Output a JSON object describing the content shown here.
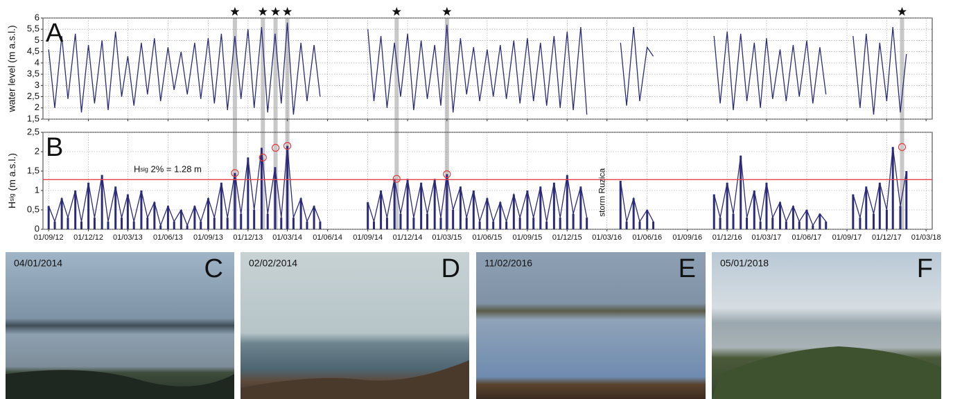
{
  "chart_data": {
    "type": "line",
    "x": [
      "2012-09-01",
      "2012-09-15",
      "2012-10-01",
      "2012-10-15",
      "2012-11-01",
      "2012-11-15",
      "2012-12-01",
      "2012-12-15",
      "2013-01-01",
      "2013-01-15",
      "2013-02-01",
      "2013-02-15",
      "2013-03-01",
      "2013-03-15",
      "2013-04-01",
      "2013-04-15",
      "2013-05-01",
      "2013-05-15",
      "2013-06-01",
      "2013-06-15",
      "2013-07-01",
      "2013-07-15",
      "2013-08-01",
      "2013-08-15",
      "2013-09-01",
      "2013-09-15",
      "2013-10-01",
      "2013-10-15",
      "2013-11-01",
      "2013-11-15",
      "2013-12-01",
      "2013-12-15",
      "2014-01-01",
      "2014-01-15",
      "2014-02-01",
      "2014-02-15",
      "2014-03-01",
      "2014-03-15",
      "2014-04-01",
      "2014-04-15",
      "2014-05-01",
      "2014-05-15",
      "2014-06-01",
      "2014-06-15",
      "2014-07-01",
      "2014-07-15",
      "2014-08-01",
      "2014-08-15",
      "2014-09-01",
      "2014-09-15",
      "2014-10-01",
      "2014-10-15",
      "2014-11-01",
      "2014-11-15",
      "2014-12-01",
      "2014-12-15",
      "2015-01-01",
      "2015-01-15",
      "2015-02-01",
      "2015-02-15",
      "2015-03-01",
      "2015-03-15",
      "2015-04-01",
      "2015-04-15",
      "2015-05-01",
      "2015-05-15",
      "2015-06-01",
      "2015-06-15",
      "2015-07-01",
      "2015-07-15",
      "2015-08-01",
      "2015-08-15",
      "2015-09-01",
      "2015-09-15",
      "2015-10-01",
      "2015-10-15",
      "2015-11-01",
      "2015-11-15",
      "2015-12-01",
      "2015-12-15",
      "2016-01-01",
      "2016-01-15",
      "2016-02-01",
      "2016-02-15",
      "2016-03-01",
      "2016-03-15",
      "2016-04-01",
      "2016-04-15",
      "2016-05-01",
      "2016-05-15",
      "2016-06-01",
      "2016-06-15",
      "2016-07-01",
      "2016-07-15",
      "2016-08-01",
      "2016-08-15",
      "2016-09-01",
      "2016-09-15",
      "2016-10-01",
      "2016-10-15",
      "2016-11-01",
      "2016-11-15",
      "2016-12-01",
      "2016-12-15",
      "2017-01-01",
      "2017-01-15",
      "2017-02-01",
      "2017-02-15",
      "2017-03-01",
      "2017-03-15",
      "2017-04-01",
      "2017-04-15",
      "2017-05-01",
      "2017-05-15",
      "2017-06-01",
      "2017-06-15",
      "2017-07-01",
      "2017-07-15",
      "2017-08-01",
      "2017-08-15",
      "2017-09-01",
      "2017-09-15",
      "2017-10-01",
      "2017-10-15",
      "2017-11-01",
      "2017-11-15",
      "2017-12-01",
      "2017-12-15",
      "2018-01-01",
      "2018-01-15"
    ],
    "xlim": [
      "2012-08-19",
      "2018-03-15"
    ],
    "xticks": [
      {
        "value": "2012-09-01",
        "label": "01/09/12"
      },
      {
        "value": "2012-12-01",
        "label": "01/12/12"
      },
      {
        "value": "2013-03-01",
        "label": "01/03/13"
      },
      {
        "value": "2013-06-01",
        "label": "01/06/13"
      },
      {
        "value": "2013-09-01",
        "label": "01/09/13"
      },
      {
        "value": "2013-12-01",
        "label": "01/12/13"
      },
      {
        "value": "2014-03-01",
        "label": "01/03/14"
      },
      {
        "value": "2014-06-01",
        "label": "01/06/14"
      },
      {
        "value": "2014-09-01",
        "label": "01/09/14"
      },
      {
        "value": "2014-12-01",
        "label": "01/12/14"
      },
      {
        "value": "2015-03-01",
        "label": "01/03/15"
      },
      {
        "value": "2015-06-01",
        "label": "01/06/15"
      },
      {
        "value": "2015-09-01",
        "label": "01/09/15"
      },
      {
        "value": "2015-12-01",
        "label": "01/12/15"
      },
      {
        "value": "2016-03-01",
        "label": "01/03/16"
      },
      {
        "value": "2016-06-01",
        "label": "01/06/16"
      },
      {
        "value": "2016-09-01",
        "label": "01/09/16"
      },
      {
        "value": "2016-12-01",
        "label": "01/12/16"
      },
      {
        "value": "2017-03-01",
        "label": "01/03/17"
      },
      {
        "value": "2017-06-01",
        "label": "01/06/17"
      },
      {
        "value": "2017-09-01",
        "label": "01/09/17"
      },
      {
        "value": "2017-12-01",
        "label": "01/12/17"
      },
      {
        "value": "2018-03-01",
        "label": "01/03/18"
      }
    ],
    "grid": true,
    "events": [
      "2013-11-01",
      "2014-01-04",
      "2014-02-02",
      "2014-03-01",
      "2014-11-06",
      "2015-03-01",
      "2018-01-05"
    ],
    "event_color": "#c8c8c8",
    "panels": [
      {
        "type": "line",
        "label": "A",
        "ylabel": "water level (m a.s.l.)",
        "ylim": [
          1.5,
          6
        ],
        "yticks": [
          {
            "value": 1.5,
            "label": "1,5"
          },
          2,
          {
            "value": 2.5,
            "label": "2,5"
          },
          3,
          {
            "value": 3.5,
            "label": "3,5"
          },
          4,
          {
            "value": 4.5,
            "label": "4,5"
          },
          5,
          {
            "value": 5.5,
            "label": "5,5"
          },
          6
        ],
        "series": [
          {
            "color": "#2b2a78",
            "values": [
              4.6,
              2.0,
              5.2,
              2.4,
              5.3,
              1.8,
              4.8,
              2.2,
              5.0,
              1.9,
              5.4,
              2.5,
              4.3,
              2.1,
              4.9,
              2.6,
              5.1,
              2.3,
              4.7,
              2.8,
              4.5,
              2.6,
              4.9,
              2.4,
              5.1,
              2.2,
              5.3,
              1.9,
              5.2,
              2.4,
              5.5,
              2.0,
              5.6,
              1.8,
              5.3,
              2.2,
              5.8,
              1.7,
              4.9,
              2.3,
              4.8,
              2.5,
              null,
              null,
              null,
              null,
              null,
              null,
              5.5,
              2.3,
              5.2,
              2.0,
              4.9,
              2.5,
              5.3,
              1.9,
              5.0,
              2.4,
              4.8,
              2.1,
              5.7,
              1.8,
              5.1,
              2.6,
              4.7,
              2.3,
              4.6,
              2.5,
              4.8,
              2.4,
              5.0,
              2.2,
              5.1,
              2.3,
              4.9,
              2.1,
              5.2,
              2.0,
              5.4,
              1.9,
              5.6,
              1.7,
              null,
              null,
              null,
              null,
              4.9,
              2.1,
              5.6,
              2.3,
              4.7,
              4.3,
              null,
              null,
              null,
              null,
              null,
              null,
              null,
              null,
              5.2,
              2.2,
              5.4,
              1.9,
              5.3,
              2.3,
              4.9,
              2.0,
              5.1,
              2.4,
              4.6,
              2.3,
              4.8,
              2.5,
              5.0,
              2.2,
              4.7,
              2.6,
              null,
              null,
              null,
              5.2,
              2.0,
              5.3,
              1.7,
              4.9,
              2.3,
              5.6,
              1.8,
              4.4
            ]
          }
        ]
      },
      {
        "type": "area",
        "label": "B",
        "ylabel": {
          "main": "H",
          "sub": "sig",
          "rest": " (m a.s.l.)"
        },
        "ylim": [
          0,
          2.5
        ],
        "yticks": [
          0,
          {
            "value": 0.5,
            "label": "0,5"
          },
          1,
          {
            "value": 1.5,
            "label": "1,5"
          },
          2,
          {
            "value": 2.5,
            "label": "2,5"
          }
        ],
        "series": [
          {
            "color": "#2b2a78",
            "values": [
              0.6,
              0.2,
              0.8,
              0.3,
              1.0,
              0.2,
              1.2,
              0.3,
              1.4,
              0.2,
              1.1,
              0.3,
              0.9,
              0.2,
              1.0,
              0.3,
              0.7,
              0.1,
              0.6,
              0.2,
              0.5,
              0.1,
              0.6,
              0.2,
              0.8,
              0.3,
              1.2,
              0.3,
              1.45,
              0.4,
              1.85,
              0.5,
              2.1,
              0.4,
              1.6,
              0.3,
              2.15,
              0.3,
              0.8,
              0.2,
              0.6,
              0.2,
              null,
              null,
              null,
              null,
              null,
              null,
              0.7,
              0.2,
              1.0,
              0.3,
              1.3,
              0.4,
              1.3,
              0.3,
              1.2,
              0.4,
              1.3,
              0.3,
              1.42,
              0.5,
              1.1,
              0.3,
              1.0,
              0.2,
              0.8,
              0.2,
              0.7,
              0.2,
              0.9,
              0.3,
              1.0,
              0.3,
              1.1,
              0.2,
              1.2,
              0.3,
              1.4,
              0.4,
              1.1,
              0.3,
              null,
              null,
              null,
              null,
              1.25,
              0.2,
              0.8,
              0.2,
              0.5,
              0.2,
              null,
              null,
              null,
              null,
              null,
              null,
              null,
              null,
              0.9,
              0.3,
              1.2,
              0.4,
              1.9,
              0.3,
              1.0,
              0.2,
              1.2,
              0.3,
              0.7,
              0.2,
              0.6,
              0.2,
              0.5,
              0.1,
              0.4,
              0.2,
              null,
              null,
              null,
              0.9,
              0.3,
              1.1,
              0.4,
              1.2,
              0.5,
              2.12,
              0.6,
              1.5
            ]
          }
        ],
        "peaks": {
          "color": "#e23a3a",
          "values": [
            1.45,
            1.85,
            2.1,
            2.15,
            1.3,
            1.42,
            2.12
          ]
        },
        "threshold": {
          "value": 1.28,
          "color": "#e8454a",
          "label_main": "H",
          "label_sub": "sig",
          "label_rest": " 2% = 1.28 m"
        },
        "annotations": [
          {
            "text": "storm Ruzica",
            "x": "2016-02-20",
            "y": 0.95
          }
        ]
      }
    ]
  },
  "photos": [
    {
      "date": "04/01/2014",
      "letter": "C"
    },
    {
      "date": "02/02/2014",
      "letter": "D"
    },
    {
      "date": "11/02/2016",
      "letter": "E"
    },
    {
      "date": "05/01/2018",
      "letter": "F"
    }
  ]
}
